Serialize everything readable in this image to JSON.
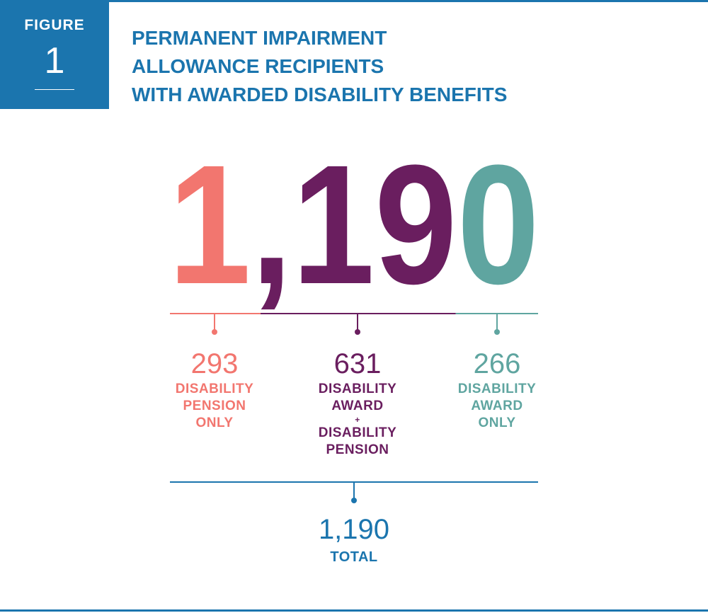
{
  "figure": {
    "label": "FIGURE",
    "number": "1"
  },
  "title_lines": [
    "PERMANENT IMPAIRMENT",
    "ALLOWANCE RECIPIENTS",
    "WITH AWARDED DISABILITY BENEFITS"
  ],
  "big_number": "1,190",
  "colors": {
    "brand_blue": "#1b75ae",
    "pension_only": "#f2766f",
    "both": "#6a1e5f",
    "award_only": "#5fa5a0"
  },
  "chart_data": {
    "type": "bar",
    "title": "PERMANENT IMPAIRMENT ALLOWANCE RECIPIENTS WITH AWARDED DISABILITY BENEFITS",
    "categories": [
      "DISABILITY PENSION ONLY",
      "DISABILITY AWARD + DISABILITY PENSION",
      "DISABILITY AWARD ONLY"
    ],
    "values": [
      293,
      631,
      266
    ],
    "total": 1190
  },
  "groups": [
    {
      "value": "293",
      "lines": [
        "DISABILITY",
        "PENSION",
        "ONLY"
      ]
    },
    {
      "value": "631",
      "lines": [
        "DISABILITY",
        "AWARD",
        "+",
        "DISABILITY",
        "PENSION"
      ]
    },
    {
      "value": "266",
      "lines": [
        "DISABILITY",
        "AWARD",
        "ONLY"
      ]
    }
  ],
  "total": {
    "value": "1,190",
    "label": "TOTAL"
  }
}
